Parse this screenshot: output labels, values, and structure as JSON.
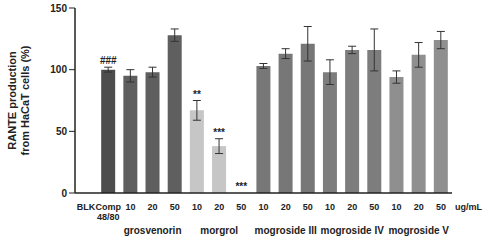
{
  "chart_data": {
    "type": "bar",
    "ylabel": "RANTE production from HaCaT cells (%)",
    "xlabel": "ug/mL",
    "categories": [
      "BLK",
      "Comp 48/80",
      "10",
      "20",
      "50",
      "10",
      "20",
      "50",
      "10",
      "20",
      "50",
      "10",
      "20",
      "50",
      "10",
      "20",
      "50"
    ],
    "groups": [
      null,
      null,
      "grosvenorin",
      "grosvenorin",
      "grosvenorin",
      "morgrol",
      "morgrol",
      "morgrol",
      "mogroside III",
      "mogroside III",
      "mogroside III",
      "mogroside IV",
      "mogroside IV",
      "mogroside IV",
      "mogroside V",
      "mogroside V",
      "mogroside V"
    ],
    "values": [
      0,
      100,
      95,
      98,
      128,
      67,
      38,
      0,
      103,
      113,
      121,
      98,
      116,
      116,
      94,
      112,
      124
    ],
    "errors": [
      0,
      2,
      5,
      4,
      5,
      8,
      6,
      0,
      2,
      4,
      14,
      10,
      3,
      17,
      5,
      10,
      7
    ],
    "annotations": [
      null,
      "###",
      null,
      null,
      null,
      "**",
      "***",
      "***",
      null,
      null,
      null,
      null,
      null,
      null,
      null,
      null,
      null
    ],
    "colors": [
      "#404040",
      "#4d4d4d",
      "#5f5f5f",
      "#5f5f5f",
      "#5f5f5f",
      "#c6c6c6",
      "#c6c6c6",
      "#c6c6c6",
      "#777777",
      "#777777",
      "#777777",
      "#7d7d7d",
      "#7d7d7d",
      "#7d7d7d",
      "#8f8f8f",
      "#8f8f8f",
      "#8f8f8f"
    ],
    "ylim": [
      0,
      150
    ],
    "yticks": [
      0,
      50,
      100,
      150
    ]
  }
}
